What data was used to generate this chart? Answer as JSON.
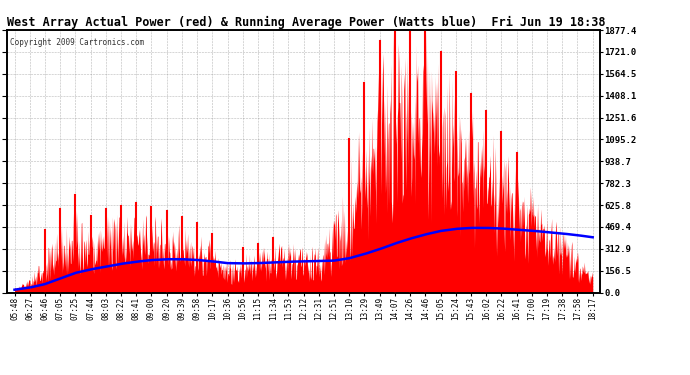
{
  "title": "West Array Actual Power (red) & Running Average Power (Watts blue)  Fri Jun 19 18:38",
  "copyright": "Copyright 2009 Cartronics.com",
  "ylabel_right": [
    "1877.4",
    "1721.0",
    "1564.5",
    "1408.1",
    "1251.6",
    "1095.2",
    "938.7",
    "782.3",
    "625.8",
    "469.4",
    "312.9",
    "156.5",
    "0.0"
  ],
  "ytick_vals": [
    1877.4,
    1721.0,
    1564.5,
    1408.1,
    1251.6,
    1095.2,
    938.7,
    782.3,
    625.8,
    469.4,
    312.9,
    156.5,
    0.0
  ],
  "ymax": 1877.4,
  "ymin": 0.0,
  "background": "#ffffff",
  "bar_color": "#ff0000",
  "avg_color": "#0000ff",
  "grid_color": "#888888",
  "tick_labels": [
    "05:48",
    "06:27",
    "06:46",
    "07:05",
    "07:25",
    "07:44",
    "08:03",
    "08:22",
    "08:41",
    "09:00",
    "09:20",
    "09:39",
    "09:58",
    "10:17",
    "10:36",
    "10:56",
    "11:15",
    "11:34",
    "11:53",
    "12:12",
    "12:31",
    "12:51",
    "13:10",
    "13:29",
    "13:49",
    "14:07",
    "14:26",
    "14:46",
    "15:05",
    "15:24",
    "15:43",
    "16:02",
    "16:22",
    "16:41",
    "17:00",
    "17:19",
    "17:38",
    "17:58",
    "18:17"
  ],
  "actual_power": [
    30,
    80,
    200,
    350,
    430,
    380,
    420,
    450,
    460,
    440,
    410,
    380,
    350,
    280,
    180,
    200,
    230,
    260,
    270,
    255,
    245,
    380,
    700,
    1050,
    1400,
    1650,
    1877,
    1750,
    1500,
    1250,
    1100,
    950,
    820,
    700,
    580,
    460,
    350,
    240,
    120
  ],
  "actual_spikes": [
    35,
    100,
    280,
    500,
    600,
    500,
    550,
    580,
    590,
    560,
    530,
    490,
    450,
    380,
    230,
    280,
    310,
    360,
    370,
    340,
    330,
    550,
    950,
    1300,
    1700,
    1877,
    1877,
    1877,
    1750,
    1500,
    1350,
    1200,
    1050,
    900,
    750,
    600,
    480,
    330,
    160
  ],
  "running_avg": [
    20,
    35,
    60,
    100,
    140,
    165,
    185,
    205,
    220,
    232,
    238,
    238,
    233,
    223,
    210,
    208,
    210,
    215,
    220,
    223,
    225,
    228,
    245,
    275,
    310,
    350,
    385,
    415,
    440,
    455,
    462,
    462,
    458,
    450,
    442,
    432,
    422,
    410,
    395
  ]
}
